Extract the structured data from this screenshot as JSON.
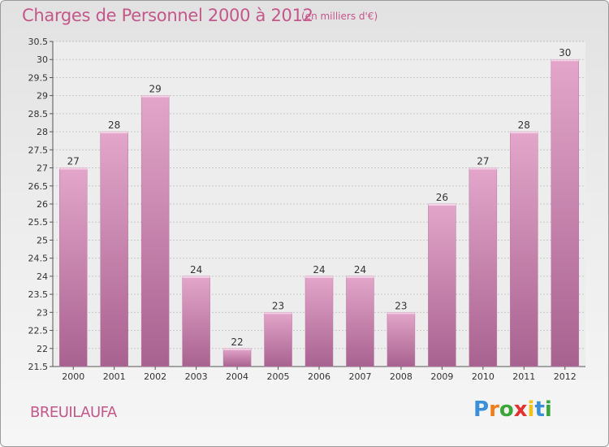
{
  "header": {
    "title": "Charges de Personnel 2000 à 2012",
    "subtitle": "(en milliers d'€)"
  },
  "footer": {
    "commune": "BREUILAUFA",
    "logo_text": "Proxiti"
  },
  "colors": {
    "title": "#c4578a",
    "bar_top": "#e3a6ca",
    "bar_bottom": "#a8628f",
    "bar_highlight": "#f2d2e4",
    "grid": "#c8c8c8"
  },
  "chart_data": {
    "type": "bar",
    "title": "Charges de Personnel 2000 à 2012",
    "subtitle": "(en milliers d'€)",
    "categories": [
      "2000",
      "2001",
      "2002",
      "2003",
      "2004",
      "2005",
      "2006",
      "2007",
      "2008",
      "2009",
      "2010",
      "2011",
      "2012"
    ],
    "values": [
      27,
      28,
      29,
      24,
      22,
      23,
      24,
      24,
      23,
      26,
      27,
      28,
      30
    ],
    "xlabel": "",
    "ylabel": "",
    "ylim": [
      21.5,
      30.5
    ],
    "yticks": [
      "21.5",
      "22",
      "22.5",
      "23",
      "23.5",
      "24",
      "24.5",
      "25",
      "25.5",
      "26",
      "26.5",
      "27",
      "27.5",
      "28",
      "28.5",
      "29",
      "29.5",
      "30",
      "30.5"
    ],
    "grid": true,
    "legend": "none"
  }
}
